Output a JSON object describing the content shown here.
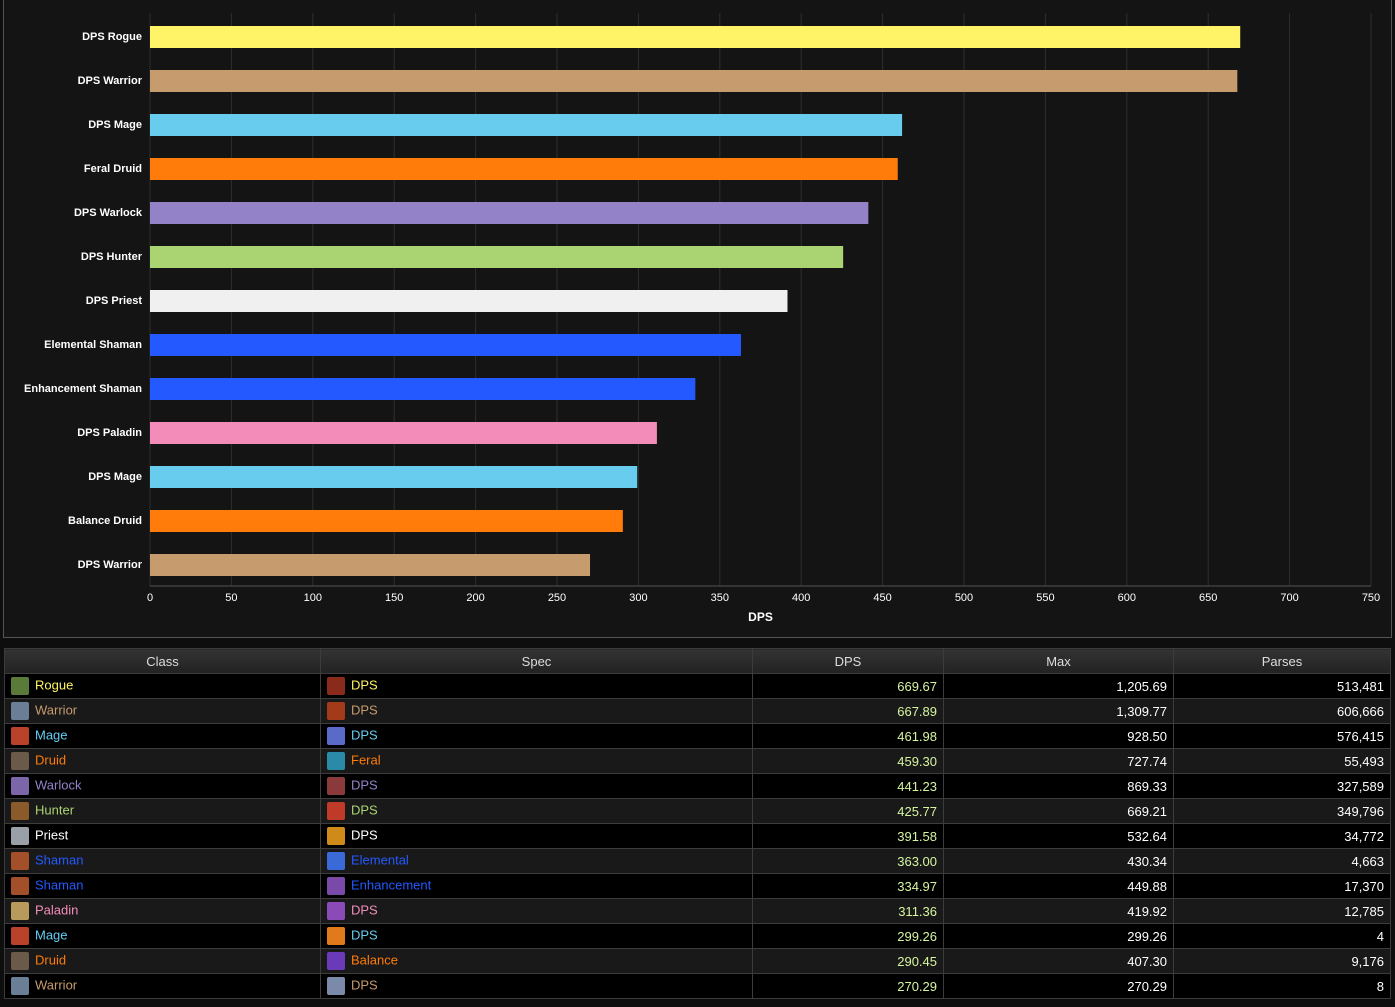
{
  "chart_data": {
    "type": "bar",
    "orientation": "horizontal",
    "categories": [
      "DPS Rogue",
      "DPS Warrior",
      "DPS Mage",
      "Feral Druid",
      "DPS Warlock",
      "DPS Hunter",
      "DPS Priest",
      "Elemental Shaman",
      "Enhancement Shaman",
      "DPS Paladin",
      "DPS Mage",
      "Balance Druid",
      "DPS Warrior"
    ],
    "values": [
      669.67,
      667.89,
      461.98,
      459.3,
      441.23,
      425.77,
      391.58,
      363.0,
      334.97,
      311.36,
      299.26,
      290.45,
      270.29
    ],
    "colors": [
      "#fff468",
      "#c69b6d",
      "#68ccef",
      "#ff7c0a",
      "#9482c9",
      "#aad372",
      "#f0f0f0",
      "#2459ff",
      "#2459ff",
      "#f48cba",
      "#68ccef",
      "#ff7c0a",
      "#c69b6d"
    ],
    "xlabel": "DPS",
    "xlim": [
      0,
      750
    ],
    "xticks": [
      0,
      50,
      100,
      150,
      200,
      250,
      300,
      350,
      400,
      450,
      500,
      550,
      600,
      650,
      700,
      750
    ],
    "grid": true
  },
  "table": {
    "headers": [
      "Class",
      "Spec",
      "DPS",
      "Max",
      "Parses"
    ],
    "rows": [
      [
        "Rogue",
        "DPS",
        "669.67",
        "1,205.69",
        "513,481"
      ],
      [
        "Warrior",
        "DPS",
        "667.89",
        "1,309.77",
        "606,666"
      ],
      [
        "Mage",
        "DPS",
        "461.98",
        "928.50",
        "576,415"
      ],
      [
        "Druid",
        "Feral",
        "459.30",
        "727.74",
        "55,493"
      ],
      [
        "Warlock",
        "DPS",
        "441.23",
        "869.33",
        "327,589"
      ],
      [
        "Hunter",
        "DPS",
        "425.77",
        "669.21",
        "349,796"
      ],
      [
        "Priest",
        "DPS",
        "391.58",
        "532.64",
        "34,772"
      ],
      [
        "Shaman",
        "Elemental",
        "363.00",
        "430.34",
        "4,663"
      ],
      [
        "Shaman",
        "Enhancement",
        "334.97",
        "449.88",
        "17,370"
      ],
      [
        "Paladin",
        "DPS",
        "311.36",
        "419.92",
        "12,785"
      ],
      [
        "Mage",
        "DPS",
        "299.26",
        "299.26",
        "4"
      ],
      [
        "Druid",
        "Balance",
        "290.45",
        "407.30",
        "9,176"
      ],
      [
        "Warrior",
        "DPS",
        "270.29",
        "270.29",
        "8"
      ]
    ],
    "colors": [
      "#fff468",
      "#c69b6d",
      "#68ccef",
      "#ff7c0a",
      "#9482c9",
      "#aad372",
      "#ffffff",
      "#2459ff",
      "#2459ff",
      "#f48cba",
      "#68ccef",
      "#ff7c0a",
      "#c69b6d"
    ]
  }
}
